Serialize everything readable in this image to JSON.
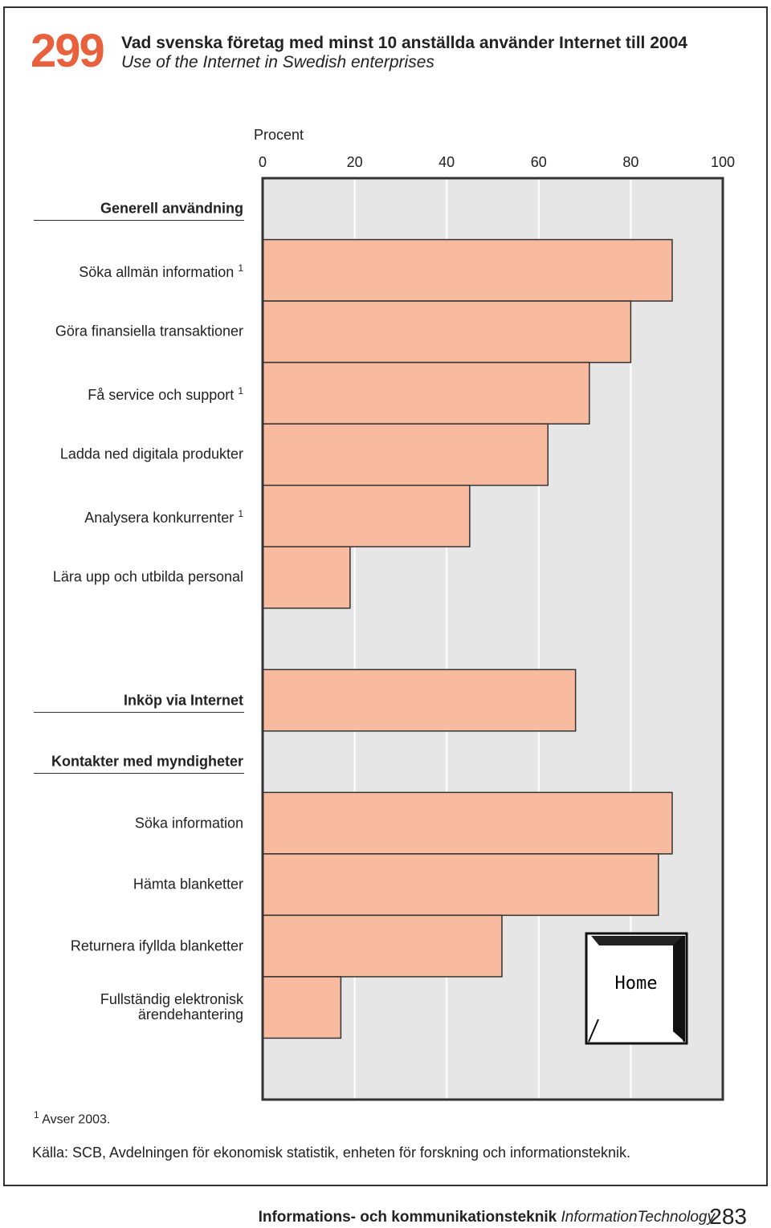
{
  "page_number_badge": "299",
  "chart_data": {
    "type": "bar",
    "orientation": "horizontal",
    "title": "Vad svenska företag med minst 10 anställda använder Internet till 2004",
    "subtitle": "Use of the Internet in Swedish enterprises",
    "x_label": "Procent",
    "categories": [
      "Generell användning",
      "Söka allmän information",
      "Göra finansiella transaktioner",
      "Få service och support",
      "Ladda ned digitala produkter",
      "Analysera konkurrenter",
      "Lära upp och utbilda personal",
      null,
      "Inköp via Internet",
      "Kontakter med myndigheter",
      "Söka information",
      "Hämta blanketter",
      "Returnera ifyllda blanketter",
      "Fullständig elektronisk\närendehantering",
      null
    ],
    "category_notes": [
      null,
      "1",
      null,
      "1",
      null,
      "1",
      null,
      null,
      null,
      null,
      null,
      null,
      null,
      null,
      null
    ],
    "bold": [
      true,
      false,
      false,
      false,
      false,
      false,
      false,
      false,
      true,
      true,
      false,
      false,
      false,
      false,
      false
    ],
    "values": [
      null,
      89,
      80,
      71,
      62,
      45,
      19,
      null,
      68,
      null,
      89,
      86,
      52,
      17,
      null
    ],
    "color": "#f8bb9f",
    "xlim": [
      0,
      100
    ],
    "xticks": [
      0,
      20,
      40,
      60,
      80,
      100
    ],
    "grid": true
  },
  "icon_label": "Home",
  "footnote": {
    "mark": "1",
    "text": "Avser 2003."
  },
  "source": "Källa: SCB, Avdelningen för ekonomisk statistik, enheten för forskning och informationsteknik.",
  "footer": {
    "section": "Informations- och kommunikationsteknik",
    "section_en": "InformationTechnology",
    "page": "283"
  }
}
